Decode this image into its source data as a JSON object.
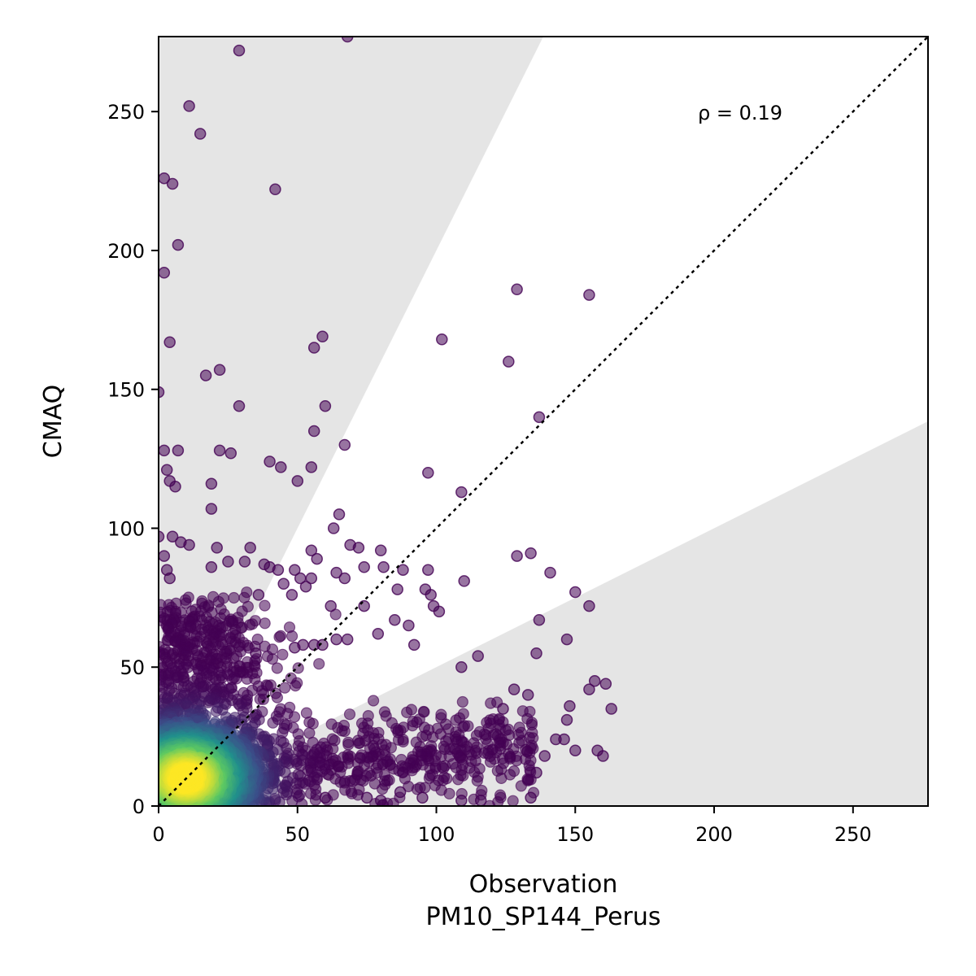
{
  "chart_data": {
    "type": "scatter",
    "xlabel": "Observation",
    "xlabel_sub": "PM10_SP144_Perus",
    "ylabel": "CMAQ",
    "xlim": [
      0,
      277
    ],
    "ylim": [
      0,
      277
    ],
    "xticks": [
      0,
      50,
      100,
      150,
      200,
      250
    ],
    "yticks": [
      0,
      50,
      100,
      150,
      200,
      250
    ],
    "annotation": "ρ = 0.19",
    "annotation_pos": [
      200,
      250
    ],
    "reference_line": "1:1 dotted",
    "bands": [
      {
        "description": "upper shaded region above factor-2 line",
        "slope": 2,
        "color": "#e5e5e5"
      },
      {
        "description": "lower shaded region below factor-0.5 line",
        "slope": 0.5,
        "color": "#e5e5e5"
      }
    ],
    "colormap": "viridis",
    "colormap_colors": [
      "#440154",
      "#3b528b",
      "#21918c",
      "#5ec962",
      "#fde725"
    ],
    "point_alpha": 0.55,
    "density_core": {
      "x": 10,
      "y": 10
    },
    "points_outliers": [
      [
        29,
        272
      ],
      [
        68,
        277
      ],
      [
        11,
        252
      ],
      [
        15,
        242
      ],
      [
        2,
        226
      ],
      [
        5,
        224
      ],
      [
        42,
        222
      ],
      [
        7,
        202
      ],
      [
        2,
        192
      ],
      [
        155,
        184
      ],
      [
        129,
        186
      ],
      [
        102,
        168
      ],
      [
        59,
        169
      ],
      [
        4,
        167
      ],
      [
        56,
        165
      ],
      [
        126,
        160
      ],
      [
        17,
        155
      ],
      [
        22,
        157
      ],
      [
        0,
        149
      ],
      [
        29,
        144
      ],
      [
        60,
        144
      ],
      [
        137,
        140
      ],
      [
        56,
        135
      ],
      [
        2,
        128
      ],
      [
        7,
        128
      ],
      [
        22,
        128
      ],
      [
        26,
        127
      ],
      [
        67,
        130
      ],
      [
        40,
        124
      ],
      [
        44,
        122
      ],
      [
        55,
        122
      ],
      [
        3,
        121
      ],
      [
        97,
        120
      ],
      [
        4,
        117
      ],
      [
        6,
        115
      ],
      [
        19,
        116
      ],
      [
        50,
        117
      ],
      [
        109,
        113
      ],
      [
        19,
        107
      ],
      [
        65,
        105
      ],
      [
        63,
        100
      ],
      [
        0,
        97
      ],
      [
        5,
        97
      ],
      [
        8,
        95
      ],
      [
        11,
        94
      ],
      [
        21,
        93
      ],
      [
        33,
        93
      ],
      [
        69,
        94
      ],
      [
        72,
        93
      ],
      [
        80,
        92
      ],
      [
        2,
        90
      ],
      [
        129,
        90
      ],
      [
        134,
        91
      ],
      [
        55,
        92
      ],
      [
        57,
        89
      ],
      [
        141,
        84
      ],
      [
        3,
        85
      ],
      [
        4,
        82
      ],
      [
        19,
        86
      ],
      [
        25,
        88
      ],
      [
        31,
        88
      ],
      [
        38,
        87
      ],
      [
        40,
        86
      ],
      [
        43,
        85
      ],
      [
        49,
        85
      ],
      [
        74,
        86
      ],
      [
        81,
        86
      ],
      [
        88,
        85
      ],
      [
        97,
        85
      ],
      [
        64,
        84
      ],
      [
        67,
        82
      ],
      [
        51,
        82
      ],
      [
        55,
        82
      ],
      [
        110,
        81
      ],
      [
        45,
        80
      ],
      [
        53,
        79
      ],
      [
        86,
        78
      ],
      [
        96,
        78
      ],
      [
        98,
        76
      ],
      [
        150,
        77
      ],
      [
        36,
        76
      ],
      [
        48,
        76
      ],
      [
        62,
        72
      ],
      [
        74,
        72
      ],
      [
        155,
        72
      ],
      [
        99,
        72
      ],
      [
        101,
        70
      ],
      [
        137,
        67
      ],
      [
        85,
        67
      ],
      [
        90,
        65
      ],
      [
        79,
        62
      ],
      [
        64,
        60
      ],
      [
        68,
        60
      ],
      [
        147,
        60
      ],
      [
        92,
        58
      ],
      [
        115,
        54
      ],
      [
        56,
        58
      ],
      [
        59,
        58
      ],
      [
        49,
        57
      ],
      [
        52,
        58
      ],
      [
        35,
        55
      ],
      [
        109,
        50
      ],
      [
        136,
        55
      ],
      [
        157,
        45
      ],
      [
        161,
        44
      ],
      [
        155,
        42
      ],
      [
        128,
        42
      ],
      [
        148,
        36
      ],
      [
        163,
        35
      ],
      [
        147,
        31
      ],
      [
        133,
        40
      ],
      [
        124,
        35
      ],
      [
        143,
        24
      ],
      [
        150,
        20
      ],
      [
        158,
        20
      ],
      [
        160,
        18
      ],
      [
        139,
        18
      ],
      [
        146,
        24
      ],
      [
        136,
        12
      ],
      [
        109,
        2
      ],
      [
        116,
        2
      ],
      [
        134,
        3
      ],
      [
        80,
        2
      ],
      [
        95,
        3
      ],
      [
        87,
        5
      ],
      [
        75,
        3
      ],
      [
        60,
        3
      ]
    ]
  }
}
